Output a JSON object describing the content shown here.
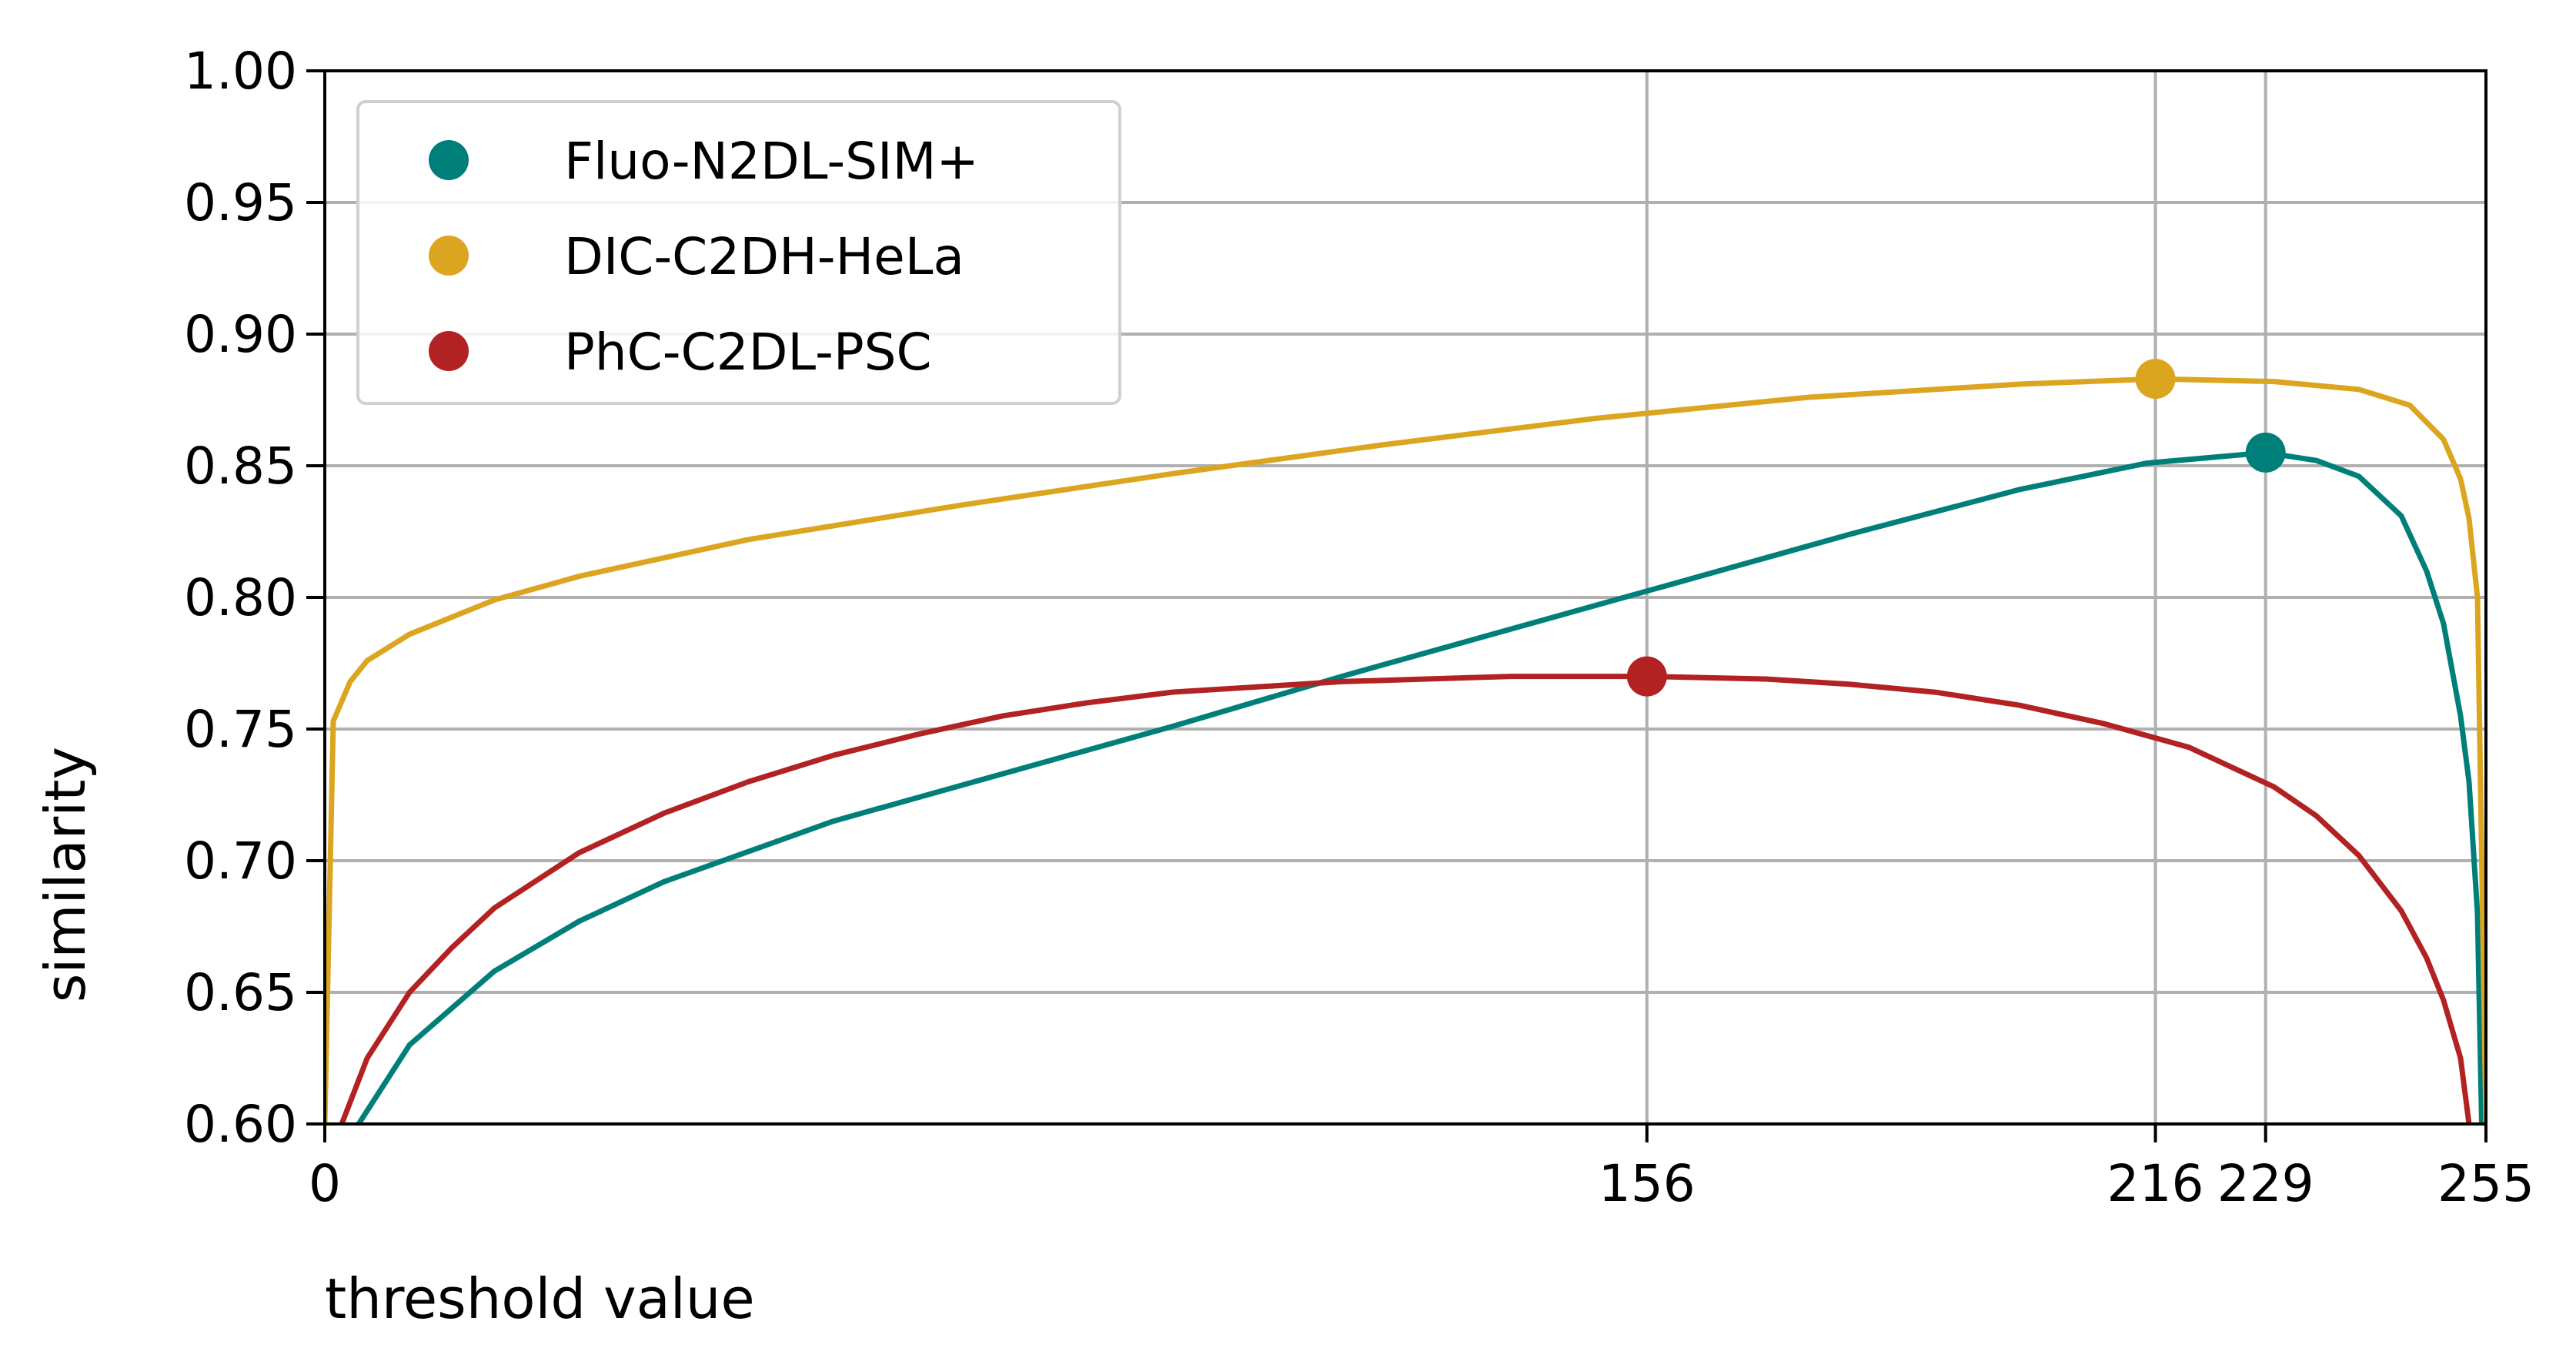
{
  "chart_data": {
    "type": "line",
    "xlabel": "threshold value",
    "ylabel": "similarity",
    "xlim": [
      0,
      255
    ],
    "ylim": [
      0.6,
      1.0
    ],
    "x_ticks": [
      0,
      156,
      216,
      229,
      255
    ],
    "y_ticks": [
      "0.60",
      "0.65",
      "0.70",
      "0.75",
      "0.80",
      "0.85",
      "0.90",
      "0.95",
      "1.00"
    ],
    "grid": true,
    "legend_position": "top-left",
    "series": [
      {
        "name": "Fluo-N2DL-SIM+",
        "color": "#007f7a",
        "points": [
          [
            4,
            0.6
          ],
          [
            10,
            0.63
          ],
          [
            20,
            0.658
          ],
          [
            30,
            0.677
          ],
          [
            40,
            0.692
          ],
          [
            60,
            0.715
          ],
          [
            80,
            0.733
          ],
          [
            100,
            0.751
          ],
          [
            120,
            0.77
          ],
          [
            140,
            0.788
          ],
          [
            160,
            0.806
          ],
          [
            180,
            0.824
          ],
          [
            200,
            0.841
          ],
          [
            215,
            0.851
          ],
          [
            229,
            0.855
          ],
          [
            235,
            0.852
          ],
          [
            240,
            0.846
          ],
          [
            245,
            0.831
          ],
          [
            248,
            0.81
          ],
          [
            250,
            0.79
          ],
          [
            252,
            0.755
          ],
          [
            253,
            0.73
          ],
          [
            254,
            0.68
          ],
          [
            254.5,
            0.6
          ]
        ],
        "max_marker": [
          229,
          0.855
        ]
      },
      {
        "name": "DIC-C2DH-HeLa",
        "color": "#dba520",
        "points": [
          [
            0,
            0.6
          ],
          [
            1,
            0.753
          ],
          [
            3,
            0.768
          ],
          [
            5,
            0.776
          ],
          [
            10,
            0.786
          ],
          [
            20,
            0.799
          ],
          [
            30,
            0.808
          ],
          [
            50,
            0.822
          ],
          [
            75,
            0.835
          ],
          [
            100,
            0.847
          ],
          [
            125,
            0.858
          ],
          [
            150,
            0.868
          ],
          [
            175,
            0.876
          ],
          [
            200,
            0.881
          ],
          [
            216,
            0.883
          ],
          [
            230,
            0.882
          ],
          [
            240,
            0.879
          ],
          [
            246,
            0.873
          ],
          [
            250,
            0.86
          ],
          [
            252,
            0.845
          ],
          [
            253,
            0.83
          ],
          [
            254,
            0.8
          ],
          [
            255,
            0.6
          ]
        ],
        "max_marker": [
          216,
          0.883
        ]
      },
      {
        "name": "PhC-C2DL-PSC",
        "color": "#b22222",
        "points": [
          [
            2,
            0.6
          ],
          [
            5,
            0.625
          ],
          [
            10,
            0.65
          ],
          [
            15,
            0.667
          ],
          [
            20,
            0.682
          ],
          [
            30,
            0.703
          ],
          [
            40,
            0.718
          ],
          [
            50,
            0.73
          ],
          [
            60,
            0.74
          ],
          [
            70,
            0.748
          ],
          [
            80,
            0.755
          ],
          [
            90,
            0.76
          ],
          [
            100,
            0.764
          ],
          [
            110,
            0.766
          ],
          [
            120,
            0.768
          ],
          [
            130,
            0.769
          ],
          [
            140,
            0.77
          ],
          [
            156,
            0.77
          ],
          [
            170,
            0.769
          ],
          [
            180,
            0.767
          ],
          [
            190,
            0.764
          ],
          [
            200,
            0.759
          ],
          [
            210,
            0.752
          ],
          [
            220,
            0.743
          ],
          [
            230,
            0.728
          ],
          [
            235,
            0.717
          ],
          [
            240,
            0.702
          ],
          [
            245,
            0.681
          ],
          [
            248,
            0.663
          ],
          [
            250,
            0.647
          ],
          [
            252,
            0.625
          ],
          [
            253,
            0.6
          ]
        ],
        "max_marker": [
          156,
          0.77
        ]
      }
    ]
  }
}
